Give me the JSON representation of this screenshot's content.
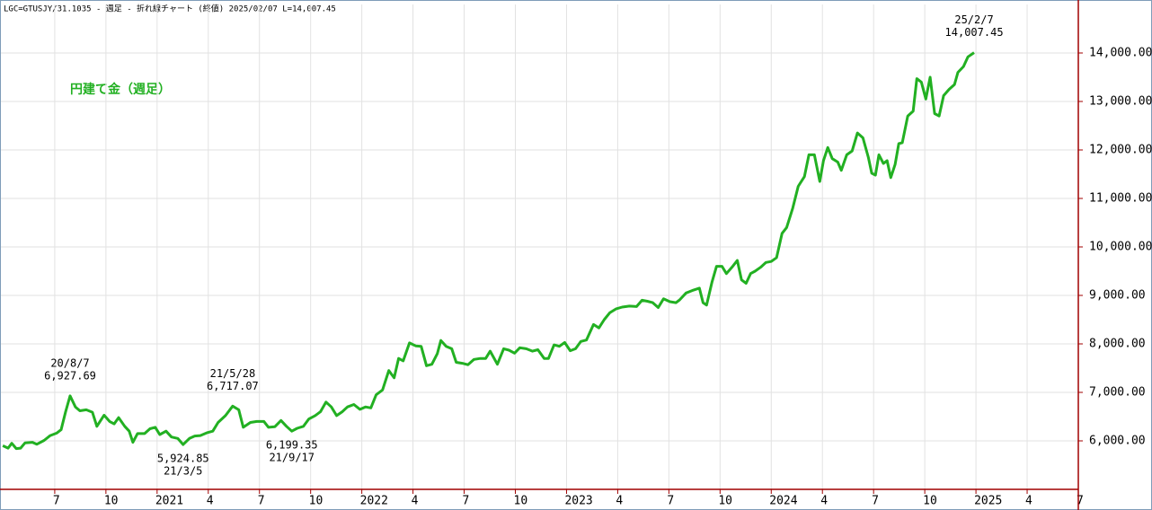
{
  "chart_data": {
    "type": "line",
    "title": "LGC=GTUSJY/31.1035 - 週足 - 折れ線チャート (終値)  2025/02/07 L=14,007.45",
    "x": [
      2020.246,
      2020.272,
      2020.29,
      2020.312,
      2020.333,
      2020.355,
      2020.391,
      2020.412,
      2020.448,
      2020.478,
      2020.509,
      2020.531,
      2020.553,
      2020.575,
      2020.601,
      2020.623,
      2020.654,
      2020.684,
      2020.706,
      2020.741,
      2020.768,
      2020.79,
      2020.812,
      2020.842,
      2020.864,
      2020.882,
      2020.904,
      2020.939,
      2020.965,
      2020.991,
      2021.013,
      2021.044,
      2021.07,
      2021.101,
      2021.127,
      2021.158,
      2021.184,
      2021.211,
      2021.246,
      2021.272,
      2021.298,
      2021.334,
      2021.369,
      2021.399,
      2021.421,
      2021.456,
      2021.487,
      2021.522,
      2021.544,
      2021.575,
      2021.605,
      2021.632,
      2021.658,
      2021.684,
      2021.715,
      2021.741,
      2021.772,
      2021.798,
      2021.825,
      2021.851,
      2021.877,
      2021.904,
      2021.93,
      2021.961,
      2021.991,
      2022.018,
      2022.044,
      2022.07,
      2022.101,
      2022.132,
      2022.158,
      2022.18,
      2022.202,
      2022.233,
      2022.263,
      2022.29,
      2022.316,
      2022.342,
      2022.369,
      2022.386,
      2022.412,
      2022.439,
      2022.461,
      2022.491,
      2022.518,
      2022.548,
      2022.579,
      2022.605,
      2022.627,
      2022.662,
      2022.693,
      2022.719,
      2022.746,
      2022.772,
      2022.803,
      2022.834,
      2022.86,
      2022.891,
      2022.912,
      2022.939,
      2022.965,
      2022.991,
      2023.018,
      2023.044,
      2023.07,
      2023.097,
      2023.132,
      2023.158,
      2023.184,
      2023.211,
      2023.241,
      2023.272,
      2023.307,
      2023.342,
      2023.369,
      2023.395,
      2023.421,
      2023.448,
      2023.474,
      2023.505,
      2023.535,
      2023.553,
      2023.584,
      2023.614,
      2023.649,
      2023.667,
      2023.684,
      2023.711,
      2023.733,
      2023.759,
      2023.781,
      2023.812,
      2023.834,
      2023.855,
      2023.877,
      2023.899,
      2023.921,
      2023.948,
      2023.974,
      2024.0,
      2024.026,
      2024.053,
      2024.075,
      2024.105,
      2024.132,
      2024.162,
      2024.184,
      2024.211,
      2024.237,
      2024.255,
      2024.276,
      2024.298,
      2024.325,
      2024.342,
      2024.369,
      2024.395,
      2024.421,
      2024.448,
      2024.474,
      2024.491,
      2024.509,
      2024.526,
      2024.548,
      2024.566,
      2024.584,
      2024.605,
      2024.623,
      2024.64,
      2024.667,
      2024.693,
      2024.711,
      2024.733,
      2024.755,
      2024.776,
      2024.798,
      2024.82,
      2024.842,
      2024.869,
      2024.895,
      2024.912,
      2024.939,
      2024.961,
      2024.991
    ],
    "series": [
      {
        "name": "円建て金（週足）",
        "color": "#22b022",
        "values": [
          5900,
          5850,
          5950,
          5840,
          5850,
          5960,
          5970,
          5930,
          6010,
          6110,
          6160,
          6230,
          6600,
          6927.69,
          6700,
          6620,
          6640,
          6590,
          6300,
          6530,
          6400,
          6350,
          6480,
          6300,
          6200,
          5970,
          6150,
          6150,
          6250,
          6280,
          6130,
          6200,
          6080,
          6050,
          5924.85,
          6050,
          6100,
          6110,
          6170,
          6200,
          6380,
          6520,
          6717.07,
          6640,
          6280,
          6380,
          6400,
          6400,
          6280,
          6290,
          6420,
          6300,
          6199.35,
          6260,
          6300,
          6450,
          6520,
          6600,
          6800,
          6700,
          6520,
          6600,
          6700,
          6750,
          6650,
          6700,
          6680,
          6950,
          7050,
          7450,
          7300,
          7700,
          7650,
          8020,
          7960,
          7950,
          7550,
          7580,
          7800,
          8070,
          7950,
          7900,
          7620,
          7600,
          7570,
          7680,
          7700,
          7700,
          7850,
          7580,
          7900,
          7870,
          7810,
          7920,
          7900,
          7850,
          7880,
          7700,
          7700,
          7980,
          7950,
          8030,
          7860,
          7900,
          8050,
          8080,
          8400,
          8330,
          8500,
          8640,
          8720,
          8760,
          8780,
          8770,
          8900,
          8880,
          8850,
          8750,
          8930,
          8870,
          8850,
          8910,
          9050,
          9100,
          9150,
          8850,
          8800,
          9280,
          9600,
          9600,
          9450,
          9600,
          9720,
          9320,
          9250,
          9450,
          9500,
          9580,
          9680,
          9700,
          9780,
          10280,
          10400,
          10800,
          11250,
          11450,
          11900,
          11900,
          11350,
          11780,
          12050,
          11820,
          11750,
          11580,
          11900,
          11980,
          12350,
          12250,
          11850,
          11520,
          11480,
          11900,
          11720,
          11780,
          11430,
          11700,
          12130,
          12150,
          12700,
          12800,
          13470,
          13400,
          13050,
          13500,
          12750,
          12700,
          13120,
          13250,
          13350,
          13600,
          13720,
          13920,
          14007.45
        ]
      }
    ],
    "annotations": [
      {
        "text": "20/8/7",
        "value": 6927.69,
        "label": "6,927.69"
      },
      {
        "text": "21/3/5",
        "value": 5924.85,
        "label": "5,924.85"
      },
      {
        "text": "21/5/28",
        "value": 6717.07,
        "label": "6,717.07"
      },
      {
        "text": "21/9/17",
        "value": 6199.35,
        "label": "6,199.35"
      },
      {
        "text": "25/2/7",
        "value": 14007.45,
        "label": "14,007.45"
      }
    ],
    "xlim": [
      2020.237,
      2025.5
    ],
    "ylim": [
      5000,
      15000
    ],
    "xticks": [
      {
        "value": 2020.5,
        "label": "7"
      },
      {
        "value": 2020.75,
        "label": "10"
      },
      2021,
      {
        "value": 2021.25,
        "label": "4"
      },
      {
        "value": 2021.5,
        "label": "7"
      },
      {
        "value": 2021.75,
        "label": "10"
      },
      2022,
      {
        "value": 2022.25,
        "label": "4"
      },
      {
        "value": 2022.5,
        "label": "7"
      },
      {
        "value": 2022.75,
        "label": "10"
      },
      2023,
      {
        "value": 2023.25,
        "label": "4"
      },
      {
        "value": 2023.5,
        "label": "7"
      },
      {
        "value": 2023.75,
        "label": "10"
      },
      2024,
      {
        "value": 2024.25,
        "label": "4"
      },
      {
        "value": 2024.5,
        "label": "7"
      },
      {
        "value": 2024.75,
        "label": "10"
      },
      2025,
      {
        "value": 2025.25,
        "label": "4"
      },
      {
        "value": 2025.5,
        "label": "7"
      }
    ],
    "yticks": [
      {
        "value": 6000,
        "label": "6,000.00"
      },
      {
        "value": 7000,
        "label": "7,000.00"
      },
      {
        "value": 8000,
        "label": "8,000.00"
      },
      {
        "value": 9000,
        "label": "9,000.00"
      },
      {
        "value": 10000,
        "label": "10,000.00"
      },
      {
        "value": 11000,
        "label": "11,000.00"
      },
      {
        "value": 12000,
        "label": "12,000.00"
      },
      {
        "value": 13000,
        "label": "13,000.00"
      },
      {
        "value": 14000,
        "label": "14,000.00"
      }
    ],
    "grid": true
  }
}
